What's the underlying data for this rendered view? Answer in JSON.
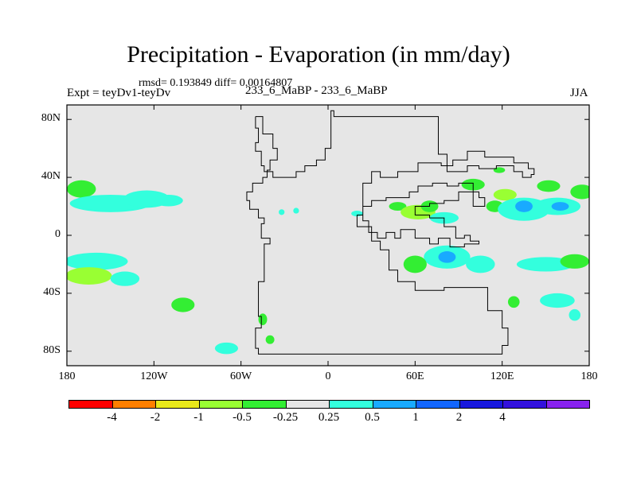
{
  "title": "Precipitation - Evaporation (in mm/day)",
  "stats": "rmsd= 0.193849 diff= 0.00164807",
  "left_label": "Expt = teyDv1-teyDv",
  "center_label": "233_6_MaBP - 233_6_MaBP",
  "right_label": "JJA",
  "y_ticks": [
    "80N",
    "40N",
    "0",
    "40S",
    "80S"
  ],
  "x_ticks": [
    "180",
    "120W",
    "60W",
    "0",
    "60E",
    "120E",
    "180"
  ],
  "colorbar": {
    "colors": [
      "#ff0000",
      "#ff7f00",
      "#e8e81a",
      "#99ff33",
      "#33ee33",
      "#e6e6e6",
      "#33ffdd",
      "#19aaff",
      "#1166ff",
      "#1818dd",
      "#3311dd",
      "#8822ee"
    ],
    "labels": [
      "-4",
      "-2",
      "-1",
      "-0.5",
      "-0.25",
      "0.25",
      "0.5",
      "1",
      "2",
      "4"
    ]
  },
  "chart_data": {
    "type": "map",
    "variable": "P - E difference",
    "units": "mm/day",
    "lon_range": [
      -180,
      180
    ],
    "lat_range": [
      -90,
      90
    ],
    "background_color": "#e6e6e6",
    "anomaly_patches": [
      {
        "lon": -170,
        "lat": 32,
        "rx": 10,
        "ry": 6,
        "color": "#33ee33"
      },
      {
        "lon": -150,
        "lat": 22,
        "rx": 28,
        "ry": 6,
        "color": "#33ffdd"
      },
      {
        "lon": -125,
        "lat": 25,
        "rx": 16,
        "ry": 6,
        "color": "#33ffdd"
      },
      {
        "lon": -110,
        "lat": 24,
        "rx": 10,
        "ry": 4,
        "color": "#33ffdd"
      },
      {
        "lon": -160,
        "lat": -18,
        "rx": 22,
        "ry": 6,
        "color": "#33ffdd"
      },
      {
        "lon": -165,
        "lat": -28,
        "rx": 16,
        "ry": 6,
        "color": "#99ff33"
      },
      {
        "lon": -140,
        "lat": -30,
        "rx": 10,
        "ry": 5,
        "color": "#33ffdd"
      },
      {
        "lon": -100,
        "lat": -48,
        "rx": 8,
        "ry": 5,
        "color": "#33ee33"
      },
      {
        "lon": -70,
        "lat": -78,
        "rx": 8,
        "ry": 4,
        "color": "#33ffdd"
      },
      {
        "lon": -45,
        "lat": -58,
        "rx": 3,
        "ry": 4,
        "color": "#33ee33"
      },
      {
        "lon": -40,
        "lat": -72,
        "rx": 3,
        "ry": 3,
        "color": "#33ee33"
      },
      {
        "lon": -32,
        "lat": 16,
        "rx": 2,
        "ry": 2,
        "color": "#33ffdd"
      },
      {
        "lon": -22,
        "lat": 17,
        "rx": 2,
        "ry": 2,
        "color": "#33ffdd"
      },
      {
        "lon": 20,
        "lat": 15,
        "rx": 4,
        "ry": 2,
        "color": "#33ffdd"
      },
      {
        "lon": 48,
        "lat": 20,
        "rx": 6,
        "ry": 3,
        "color": "#33ee33"
      },
      {
        "lon": 62,
        "lat": 16,
        "rx": 12,
        "ry": 5,
        "color": "#99ff33"
      },
      {
        "lon": 70,
        "lat": 20,
        "rx": 6,
        "ry": 4,
        "color": "#33ee33"
      },
      {
        "lon": 80,
        "lat": 12,
        "rx": 10,
        "ry": 4,
        "color": "#33ffdd"
      },
      {
        "lon": 100,
        "lat": 35,
        "rx": 8,
        "ry": 4,
        "color": "#33ee33"
      },
      {
        "lon": 115,
        "lat": 20,
        "rx": 6,
        "ry": 4,
        "color": "#33ee33"
      },
      {
        "lon": 122,
        "lat": 28,
        "rx": 8,
        "ry": 4,
        "color": "#99ff33"
      },
      {
        "lon": 135,
        "lat": 18,
        "rx": 18,
        "ry": 8,
        "color": "#33ffdd"
      },
      {
        "lon": 135,
        "lat": 20,
        "rx": 6,
        "ry": 4,
        "color": "#19aaff"
      },
      {
        "lon": 152,
        "lat": 34,
        "rx": 8,
        "ry": 4,
        "color": "#33ee33"
      },
      {
        "lon": 158,
        "lat": 20,
        "rx": 16,
        "ry": 6,
        "color": "#33ffdd"
      },
      {
        "lon": 160,
        "lat": 20,
        "rx": 6,
        "ry": 3,
        "color": "#19aaff"
      },
      {
        "lon": 175,
        "lat": 30,
        "rx": 8,
        "ry": 5,
        "color": "#33ee33"
      },
      {
        "lon": 82,
        "lat": -15,
        "rx": 16,
        "ry": 8,
        "color": "#33ffdd"
      },
      {
        "lon": 82,
        "lat": -15,
        "rx": 6,
        "ry": 4,
        "color": "#19aaff"
      },
      {
        "lon": 60,
        "lat": -20,
        "rx": 8,
        "ry": 6,
        "color": "#33ee33"
      },
      {
        "lon": 105,
        "lat": -20,
        "rx": 10,
        "ry": 6,
        "color": "#33ffdd"
      },
      {
        "lon": 150,
        "lat": -20,
        "rx": 20,
        "ry": 5,
        "color": "#33ffdd"
      },
      {
        "lon": 170,
        "lat": -18,
        "rx": 10,
        "ry": 5,
        "color": "#33ee33"
      },
      {
        "lon": 158,
        "lat": -45,
        "rx": 12,
        "ry": 5,
        "color": "#33ffdd"
      },
      {
        "lon": 128,
        "lat": -46,
        "rx": 4,
        "ry": 4,
        "color": "#33ee33"
      },
      {
        "lon": 170,
        "lat": -55,
        "rx": 4,
        "ry": 4,
        "color": "#33ffdd"
      },
      {
        "lon": 118,
        "lat": 45,
        "rx": 4,
        "ry": 2,
        "color": "#33ee33"
      }
    ],
    "continents": [
      {
        "name": "americas",
        "outline": [
          [
            -50,
            82
          ],
          [
            -45,
            82
          ],
          [
            -45,
            70
          ],
          [
            -38,
            70
          ],
          [
            -38,
            60
          ],
          [
            -35,
            60
          ],
          [
            -35,
            52
          ],
          [
            -40,
            52
          ],
          [
            -40,
            45
          ],
          [
            -42,
            45
          ],
          [
            -42,
            40
          ],
          [
            -45,
            40
          ],
          [
            -45,
            36
          ],
          [
            -52,
            36
          ],
          [
            -52,
            30
          ],
          [
            -56,
            30
          ],
          [
            -56,
            24
          ],
          [
            -54,
            24
          ],
          [
            -54,
            18
          ],
          [
            -48,
            18
          ],
          [
            -48,
            12
          ],
          [
            -44,
            12
          ],
          [
            -44,
            8
          ],
          [
            -46,
            8
          ],
          [
            -46,
            -2
          ],
          [
            -40,
            -2
          ],
          [
            -40,
            -6
          ],
          [
            -44,
            -6
          ],
          [
            -44,
            -32
          ],
          [
            -48,
            -32
          ],
          [
            -48,
            -56
          ],
          [
            -46,
            -56
          ],
          [
            -46,
            -64
          ],
          [
            -50,
            -64
          ],
          [
            -50,
            -78
          ],
          [
            -48,
            -78
          ],
          [
            -48,
            -82
          ],
          [
            -40,
            -82
          ],
          [
            120,
            -82
          ],
          [
            120,
            -76
          ],
          [
            124,
            -76
          ],
          [
            124,
            -64
          ],
          [
            120,
            -64
          ],
          [
            120,
            -52
          ],
          [
            110,
            -52
          ],
          [
            110,
            -36
          ],
          [
            80,
            -36
          ],
          [
            80,
            -38
          ],
          [
            60,
            -38
          ],
          [
            60,
            -32
          ],
          [
            48,
            -32
          ],
          [
            48,
            -24
          ],
          [
            42,
            -24
          ],
          [
            42,
            -10
          ],
          [
            36,
            -10
          ],
          [
            36,
            -4
          ],
          [
            30,
            -4
          ],
          [
            30,
            6
          ],
          [
            20,
            6
          ],
          [
            20,
            14
          ],
          [
            24,
            14
          ],
          [
            24,
            20
          ],
          [
            30,
            20
          ],
          [
            30,
            24
          ],
          [
            40,
            24
          ],
          [
            40,
            26
          ],
          [
            56,
            26
          ],
          [
            56,
            30
          ],
          [
            62,
            30
          ],
          [
            62,
            34
          ],
          [
            72,
            34
          ],
          [
            72,
            36
          ],
          [
            82,
            36
          ],
          [
            82,
            34
          ],
          [
            90,
            34
          ],
          [
            90,
            36
          ],
          [
            100,
            36
          ],
          [
            100,
            30
          ],
          [
            104,
            30
          ],
          [
            104,
            26
          ],
          [
            108,
            26
          ],
          [
            108,
            20
          ],
          [
            100,
            20
          ],
          [
            100,
            30
          ],
          [
            90,
            30
          ],
          [
            90,
            24
          ],
          [
            80,
            24
          ],
          [
            80,
            22
          ],
          [
            70,
            22
          ],
          [
            70,
            20
          ],
          [
            60,
            20
          ],
          [
            60,
            14
          ],
          [
            70,
            14
          ],
          [
            70,
            12
          ],
          [
            80,
            12
          ],
          [
            80,
            6
          ],
          [
            88,
            6
          ],
          [
            88,
            -2
          ],
          [
            94,
            -2
          ],
          [
            94,
            0
          ],
          [
            98,
            0
          ],
          [
            98,
            -4
          ],
          [
            104,
            -4
          ],
          [
            104,
            -6
          ],
          [
            94,
            -6
          ],
          [
            94,
            -8
          ],
          [
            84,
            -8
          ],
          [
            84,
            -2
          ],
          [
            76,
            -2
          ],
          [
            76,
            -6
          ],
          [
            70,
            -6
          ],
          [
            70,
            -2
          ],
          [
            60,
            -2
          ],
          [
            60,
            4
          ],
          [
            50,
            4
          ],
          [
            50,
            -2
          ],
          [
            46,
            -2
          ],
          [
            46,
            2
          ],
          [
            40,
            2
          ],
          [
            40,
            -2
          ],
          [
            34,
            -2
          ],
          [
            34,
            2
          ],
          [
            28,
            2
          ],
          [
            28,
            10
          ],
          [
            24,
            10
          ],
          [
            24,
            36
          ],
          [
            30,
            36
          ],
          [
            30,
            44
          ],
          [
            36,
            44
          ],
          [
            36,
            40
          ],
          [
            48,
            40
          ],
          [
            48,
            44
          ],
          [
            62,
            44
          ],
          [
            62,
            50
          ],
          [
            78,
            50
          ],
          [
            78,
            48
          ],
          [
            86,
            48
          ],
          [
            86,
            52
          ],
          [
            96,
            52
          ],
          [
            96,
            58
          ],
          [
            108,
            58
          ],
          [
            108,
            54
          ],
          [
            128,
            54
          ],
          [
            128,
            50
          ],
          [
            138,
            50
          ],
          [
            138,
            46
          ],
          [
            142,
            46
          ],
          [
            142,
            42
          ],
          [
            140,
            42
          ],
          [
            140,
            40
          ],
          [
            134,
            40
          ],
          [
            134,
            44
          ],
          [
            128,
            44
          ],
          [
            128,
            48
          ],
          [
            116,
            48
          ],
          [
            116,
            46
          ],
          [
            104,
            46
          ],
          [
            104,
            48
          ],
          [
            96,
            48
          ],
          [
            96,
            44
          ],
          [
            82,
            44
          ],
          [
            82,
            56
          ],
          [
            76,
            56
          ],
          [
            76,
            82
          ],
          [
            4,
            82
          ],
          [
            4,
            86
          ],
          [
            2,
            86
          ],
          [
            2,
            60
          ],
          [
            -2,
            60
          ],
          [
            -2,
            52
          ],
          [
            -8,
            52
          ],
          [
            -8,
            48
          ],
          [
            -16,
            48
          ],
          [
            -16,
            44
          ],
          [
            -22,
            44
          ],
          [
            -22,
            40
          ],
          [
            -38,
            40
          ],
          [
            -38,
            44
          ],
          [
            -44,
            44
          ],
          [
            -44,
            48
          ],
          [
            -46,
            48
          ],
          [
            -46,
            58
          ],
          [
            -50,
            58
          ],
          [
            -50,
            64
          ],
          [
            -48,
            64
          ],
          [
            -48,
            74
          ],
          [
            -50,
            74
          ],
          [
            -50,
            82
          ]
        ]
      }
    ]
  }
}
